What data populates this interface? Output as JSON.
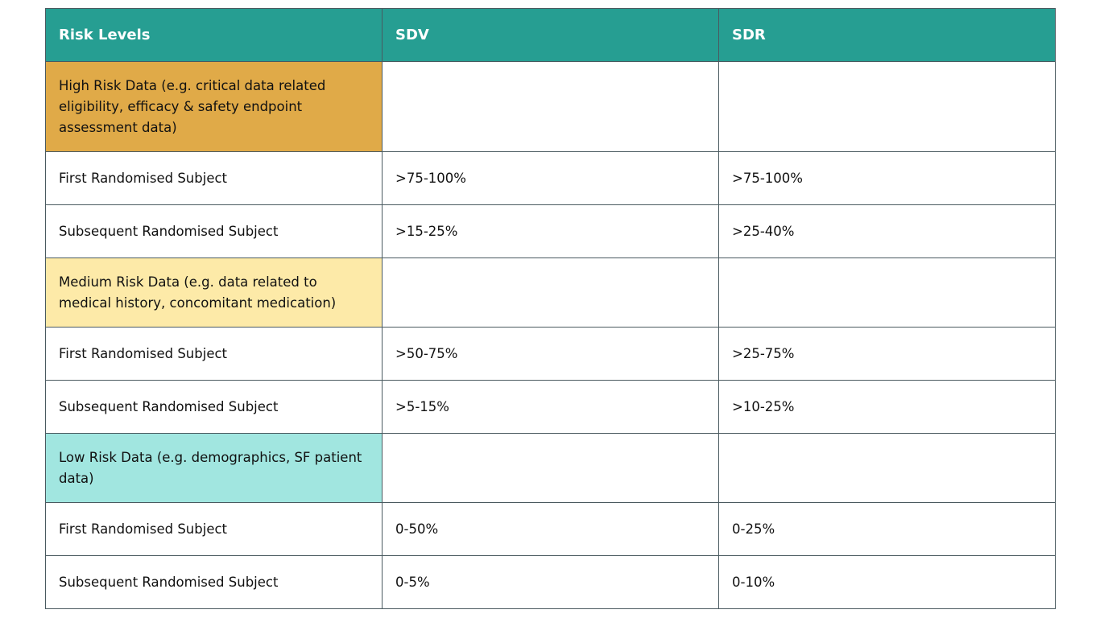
{
  "colors": {
    "header": "#269e92",
    "high": "#e0aa48",
    "medium": "#fdeaa8",
    "low": "#a1e6e0"
  },
  "table": {
    "headers": [
      "Risk Levels",
      "SDV",
      "SDR"
    ],
    "rows": [
      {
        "label": "High Risk Data (e.g. critical data related eligibility, efficacy & safety endpoint assessment data)",
        "sdv": "",
        "sdr": ""
      },
      {
        "label": "First Randomised Subject",
        "sdv": ">75-100%",
        "sdr": ">75-100%"
      },
      {
        "label": "Subsequent Randomised Subject",
        "sdv": ">15-25%",
        "sdr": ">25-40%"
      },
      {
        "label": "Medium Risk Data (e.g. data related to medical history, concomitant medication)",
        "sdv": "",
        "sdr": ""
      },
      {
        "label": "First Randomised Subject",
        "sdv": ">50-75%",
        "sdr": ">25-75%"
      },
      {
        "label": "Subsequent Randomised Subject",
        "sdv": ">5-15%",
        "sdr": ">10-25%"
      },
      {
        "label": "Low Risk Data (e.g. demographics, SF patient data)",
        "sdv": "",
        "sdr": ""
      },
      {
        "label": "First Randomised Subject",
        "sdv": "0-50%",
        "sdr": "0-25%"
      },
      {
        "label": "Subsequent Randomised Subject",
        "sdv": "0-5%",
        "sdr": "0-10%"
      }
    ]
  }
}
